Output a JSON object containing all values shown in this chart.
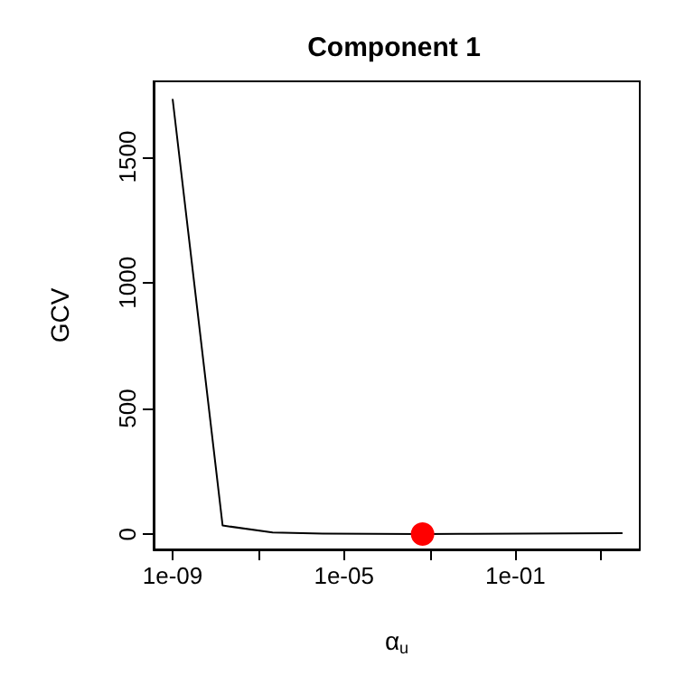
{
  "chart_data": {
    "type": "line",
    "title": "Component 1",
    "xlabel": "α$_{u}$",
    "ylabel": "GCV",
    "log": "x",
    "x": [
      1e-09,
      1.468e-08,
      2.154e-07,
      3.162e-06,
      4.642e-05,
      0.0006813,
      0.01,
      0.1468,
      2.154,
      31.62
    ],
    "series": [
      {
        "color": "#000000",
        "values": [
          1730,
          35,
          7,
          3,
          2,
          1,
          2,
          3,
          4,
          5
        ]
      },
      {
        "type": "scatter",
        "color": "#ff0000",
        "marker": "circle",
        "x": [
          0.0006813
        ],
        "values": [
          1
        ]
      }
    ],
    "xlim": [
      3.6e-10,
      80
    ],
    "ylim": [
      -60,
      1800
    ],
    "xticks": [
      {
        "value": 1e-09,
        "label": "1e-09"
      },
      {
        "value": 1e-07,
        "label": null
      },
      {
        "value": 1e-05,
        "label": "1e-05"
      },
      {
        "value": 0.001,
        "label": null
      },
      {
        "value": 0.1,
        "label": "1e-01"
      },
      {
        "value": 10,
        "label": null
      }
    ],
    "yticks": [
      0,
      500,
      1000,
      1500
    ],
    "grid": false,
    "marker": "none",
    "line_style": "solid"
  }
}
